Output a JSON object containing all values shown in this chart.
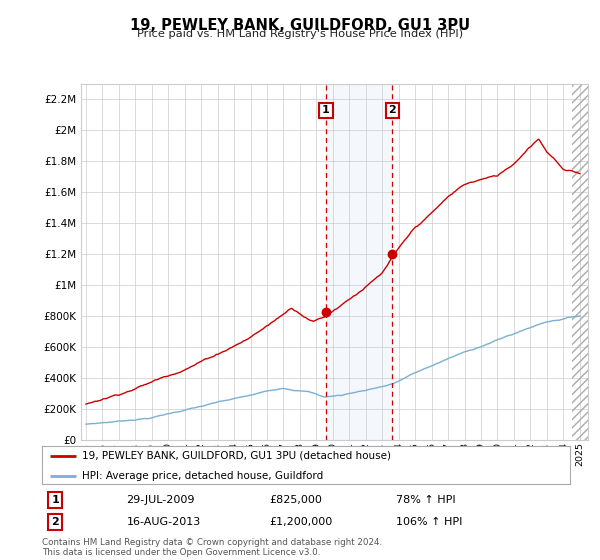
{
  "title": "19, PEWLEY BANK, GUILDFORD, GU1 3PU",
  "subtitle": "Price paid vs. HM Land Registry's House Price Index (HPI)",
  "legend_line1": "19, PEWLEY BANK, GUILDFORD, GU1 3PU (detached house)",
  "legend_line2": "HPI: Average price, detached house, Guildford",
  "transaction1_date": "29-JUL-2009",
  "transaction1_price": 825000,
  "transaction1_pct": "78% ↑ HPI",
  "transaction2_date": "16-AUG-2013",
  "transaction2_price": 1200000,
  "transaction2_pct": "106% ↑ HPI",
  "footer": "Contains HM Land Registry data © Crown copyright and database right 2024.\nThis data is licensed under the Open Government Licence v3.0.",
  "ylim": [
    0,
    2300000
  ],
  "yticks": [
    0,
    200000,
    400000,
    600000,
    800000,
    1000000,
    1200000,
    1400000,
    1600000,
    1800000,
    2000000,
    2200000
  ],
  "ytick_labels": [
    "£0",
    "£200K",
    "£400K",
    "£600K",
    "£800K",
    "£1M",
    "£1.2M",
    "£1.4M",
    "£1.6M",
    "£1.8M",
    "£2M",
    "£2.2M"
  ],
  "red_color": "#cc0000",
  "blue_color": "#7bafd4",
  "background_color": "#ffffff",
  "grid_color": "#cccccc",
  "transaction1_year": 2009.58,
  "transaction2_year": 2013.62,
  "xmin": 1995.0,
  "xmax": 2025.5
}
